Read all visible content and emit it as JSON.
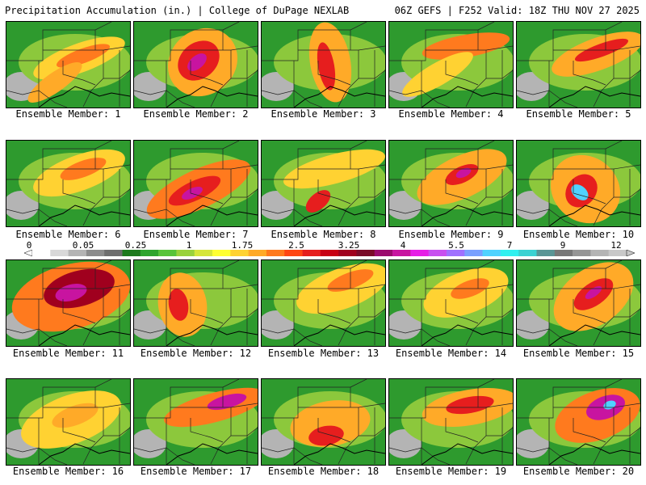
{
  "header": {
    "title_left": "Precipitation Accumulation (in.) | College of DuPage NEXLAB",
    "title_right": "06Z GEFS | F252 Valid: 18Z THU NOV 27 2025"
  },
  "colorbar": {
    "tick_labels": [
      "0",
      "0.05",
      "0.25",
      "1",
      "1.75",
      "2.5",
      "3.25",
      "4",
      "5.5",
      "7",
      "9",
      "12"
    ],
    "colors": [
      "#ffffff",
      "#d8d8d8",
      "#b4b4b4",
      "#8c8c8c",
      "#6e6e6e",
      "#1e7a1e",
      "#2ea52e",
      "#58c43a",
      "#9ad23c",
      "#d6e63a",
      "#ffff32",
      "#ffd232",
      "#ffaa28",
      "#ff7a1e",
      "#ff4614",
      "#e61e1e",
      "#c80014",
      "#a0001e",
      "#7a0a28",
      "#9b0a6e",
      "#c814a0",
      "#e61ee6",
      "#c850f0",
      "#a070ff",
      "#7aa0ff",
      "#50d2ff",
      "#32f0f0",
      "#3cd2d2",
      "#5a9696",
      "#787878",
      "#969696",
      "#b4b4b4",
      "#c8c8c8"
    ]
  },
  "panels": [
    {
      "label": "Ensemble Member: 1"
    },
    {
      "label": "Ensemble Member: 2"
    },
    {
      "label": "Ensemble Member: 3"
    },
    {
      "label": "Ensemble Member: 4"
    },
    {
      "label": "Ensemble Member: 5"
    },
    {
      "label": "Ensemble Member: 6"
    },
    {
      "label": "Ensemble Member: 7"
    },
    {
      "label": "Ensemble Member: 8"
    },
    {
      "label": "Ensemble Member: 9"
    },
    {
      "label": "Ensemble Member: 10"
    },
    {
      "label": "Ensemble Member: 11"
    },
    {
      "label": "Ensemble Member: 12"
    },
    {
      "label": "Ensemble Member: 13"
    },
    {
      "label": "Ensemble Member: 14"
    },
    {
      "label": "Ensemble Member: 15"
    },
    {
      "label": "Ensemble Member: 16"
    },
    {
      "label": "Ensemble Member: 17"
    },
    {
      "label": "Ensemble Member: 18"
    },
    {
      "label": "Ensemble Member: 19"
    },
    {
      "label": "Ensemble Member: 20"
    }
  ]
}
